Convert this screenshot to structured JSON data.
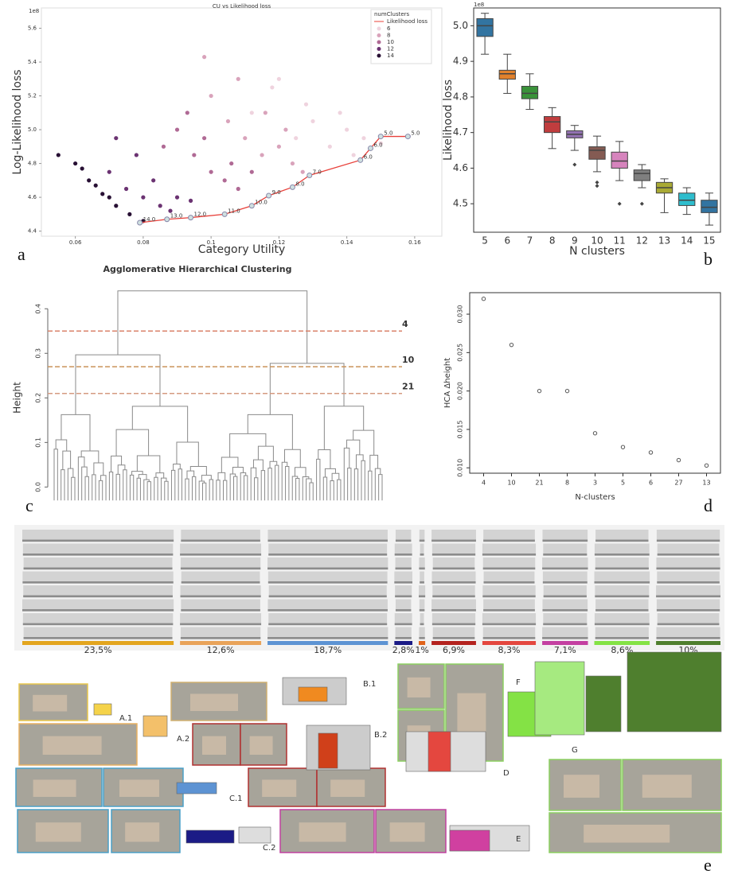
{
  "panel_labels": [
    "a",
    "b",
    "c",
    "d",
    "e"
  ],
  "chart_data": [
    {
      "type": "scatter",
      "title": "CU vs Likelihood loss",
      "x_label": "Category Utility",
      "y_label": "Log-Likelihood loss",
      "scale_label": "1e8",
      "legend_title": "numClusters",
      "legend": "upper right",
      "xlim": [
        0.05,
        0.168
      ],
      "ylim": [
        4.37,
        5.72
      ],
      "xticks": [
        0.06,
        0.08,
        0.1,
        0.12,
        0.14,
        0.16
      ],
      "yticks": [
        4.4,
        4.6,
        4.8,
        {
          "value": 5,
          "label": "5.0"
        },
        5.2,
        5.4,
        5.6
      ],
      "series": [
        {
          "name": "6",
          "color": "#efd3de",
          "x": [
            0.112,
            0.118,
            0.125,
            0.13,
            0.135,
            0.14,
            0.145,
            0.15,
            0.128,
            0.138,
            0.142,
            0.12
          ],
          "y": [
            5.1,
            5.25,
            4.95,
            5.05,
            4.9,
            5.0,
            4.95,
            4.92,
            5.15,
            5.1,
            4.85,
            5.3
          ]
        },
        {
          "name": "8",
          "color": "#d9a3bb",
          "x": [
            0.1,
            0.105,
            0.11,
            0.115,
            0.12,
            0.124,
            0.108,
            0.116,
            0.122,
            0.098,
            0.127
          ],
          "y": [
            5.2,
            5.05,
            4.95,
            4.85,
            4.9,
            4.8,
            5.3,
            5.1,
            5.0,
            5.43,
            4.75
          ]
        },
        {
          "name": "10",
          "color": "#b06a95",
          "x": [
            0.09,
            0.095,
            0.1,
            0.104,
            0.108,
            0.093,
            0.098,
            0.106,
            0.112,
            0.086
          ],
          "y": [
            5.0,
            4.85,
            4.75,
            4.7,
            4.65,
            5.1,
            4.95,
            4.8,
            4.75,
            4.9
          ]
        },
        {
          "name": "12",
          "color": "#6b3372",
          "x": [
            0.07,
            0.075,
            0.08,
            0.085,
            0.09,
            0.078,
            0.083,
            0.072,
            0.088,
            0.094
          ],
          "y": [
            4.75,
            4.65,
            4.6,
            4.55,
            4.6,
            4.85,
            4.7,
            4.95,
            4.52,
            4.58
          ]
        },
        {
          "name": "14",
          "color": "#281034",
          "x": [
            0.055,
            0.06,
            0.064,
            0.068,
            0.072,
            0.076,
            0.08,
            0.062,
            0.07,
            0.066
          ],
          "y": [
            4.85,
            4.8,
            4.7,
            4.62,
            4.55,
            4.5,
            4.46,
            4.77,
            4.6,
            4.67
          ]
        }
      ],
      "line": {
        "name": "Likelihood loss",
        "color": "#e8403a",
        "x": [
          0.079,
          0.087,
          0.094,
          0.104,
          0.112,
          0.117,
          0.124,
          0.129,
          0.144,
          0.147,
          0.15,
          0.158
        ],
        "y": [
          4.45,
          4.47,
          4.48,
          4.5,
          4.55,
          4.61,
          4.66,
          4.73,
          4.82,
          4.89,
          4.96,
          4.96
        ],
        "point_labels": [
          "14.0",
          "13.0",
          "12.0",
          "11.0",
          "10.0",
          "9.0",
          "8.0",
          "7.0",
          "6.0",
          "6.0",
          "5.0",
          "5.0"
        ]
      }
    },
    {
      "type": "box",
      "x_label": "N clusters",
      "y_label": "Likelihood loss",
      "scale_label": "1e8",
      "ylim": [
        4.42,
        5.05
      ],
      "yticks": [
        4.5,
        4.6,
        4.7,
        4.8,
        4.9,
        {
          "value": 5,
          "label": "5.0"
        }
      ],
      "categories": [
        "5",
        "6",
        "7",
        "8",
        "9",
        "10",
        "11",
        "12",
        "13",
        "14",
        "15"
      ],
      "colors": [
        "#3274a1",
        "#e1812c",
        "#3a923a",
        "#c03d3e",
        "#9372b2",
        "#845b53",
        "#d684bd",
        "#7f7f7f",
        "#a9aa35",
        "#2ebdcd",
        "#3274a1"
      ],
      "min": [
        4.92,
        4.81,
        4.765,
        4.655,
        4.65,
        4.59,
        4.565,
        4.545,
        4.475,
        4.47,
        4.44
      ],
      "q1": [
        4.97,
        4.85,
        4.795,
        4.7,
        4.685,
        4.625,
        4.6,
        4.565,
        4.53,
        4.495,
        4.475
      ],
      "median": [
        5.0,
        4.865,
        4.81,
        4.73,
        4.695,
        4.65,
        4.62,
        4.585,
        4.545,
        4.51,
        4.49
      ],
      "q3": [
        5.02,
        4.875,
        4.83,
        4.745,
        4.705,
        4.66,
        4.645,
        4.595,
        4.56,
        4.53,
        4.51
      ],
      "max": [
        5.035,
        4.92,
        4.865,
        4.77,
        4.72,
        4.69,
        4.675,
        4.61,
        4.57,
        4.545,
        4.53
      ],
      "outliers": [
        [],
        [],
        [],
        [],
        [
          4.61
        ],
        [
          4.56,
          4.55
        ],
        [
          4.5
        ],
        [
          4.5
        ],
        [],
        [],
        []
      ]
    },
    {
      "type": "dendrogram",
      "title": "Agglomerative Hierarchical Clustering",
      "y_label": "Height",
      "ylim": [
        -0.035,
        0.445
      ],
      "yticks": [
        {
          "value": 0,
          "label": "0.0"
        },
        0.1,
        0.2,
        0.3,
        0.4
      ],
      "cuts": [
        {
          "value": 0.35,
          "label": "4",
          "color": "#d9826a"
        },
        {
          "value": 0.27,
          "label": "10",
          "color": "#c9935a"
        },
        {
          "value": 0.21,
          "label": "21",
          "color": "#d49a80"
        }
      ]
    },
    {
      "type": "scatter",
      "x_label": "N-clusters",
      "y_label": "HCA Δheight",
      "ylim": [
        0.0093,
        0.0328
      ],
      "yticks": [
        {
          "value": 0.01,
          "label": "0.010"
        },
        {
          "value": 0.015,
          "label": "0.015"
        },
        {
          "value": 0.02,
          "label": "0.020"
        },
        {
          "value": 0.025,
          "label": "0.025"
        },
        {
          "value": 0.03,
          "label": "0.030"
        }
      ],
      "categories": [
        "4",
        "10",
        "21",
        "8",
        "3",
        "5",
        "6",
        "27",
        "13"
      ],
      "values": [
        0.032,
        0.026,
        0.02,
        0.02,
        0.0145,
        0.0127,
        0.012,
        0.011,
        0.0103
      ]
    },
    {
      "type": "flow",
      "values": [
        23.5,
        12.6,
        18.7,
        2.8,
        1,
        6.9,
        8.3,
        7.1,
        8.6,
        10
      ],
      "value_labels": [
        "23,5%",
        "12,6%",
        "18,7%",
        "2,8%",
        "1%",
        "6,9%",
        "8,3%",
        "7,1%",
        "8,6%",
        "10%"
      ],
      "colors": [
        "#e3a51e",
        "#e9a35a",
        "#5d93d3",
        "#1b1b86",
        "#e0631a",
        "#b4231f",
        "#e4473f",
        "#c43fa1",
        "#84e245",
        "#4f7f2e"
      ]
    }
  ],
  "illustrations": [
    "A.1",
    "A.2",
    "B.1",
    "B.2",
    "C.1",
    "C.2",
    "D",
    "E",
    "F",
    "G"
  ]
}
